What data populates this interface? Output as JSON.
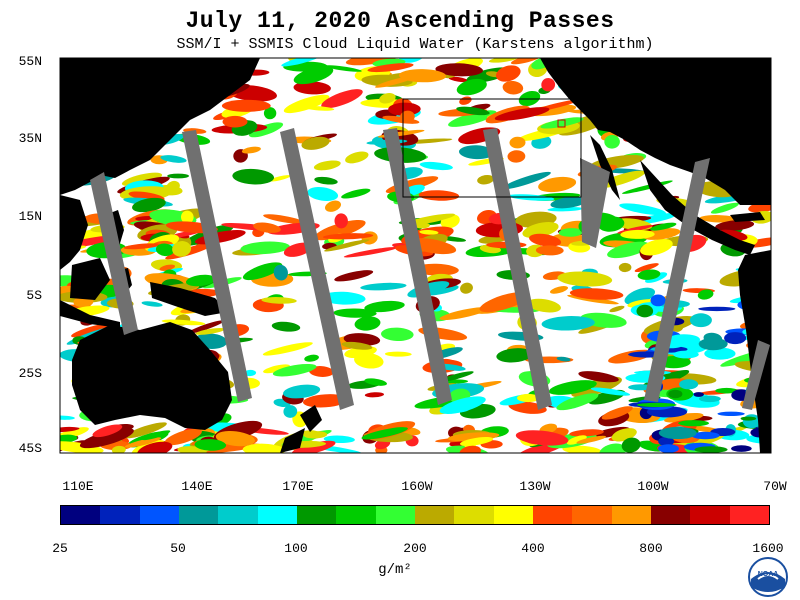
{
  "title": "July 11, 2020  Ascending Passes",
  "subtitle": "SSM/I + SSMIS Cloud Liquid Water (Karstens algorithm)",
  "lat_labels": [
    "55N",
    "35N",
    "15N",
    "5S",
    "25S",
    "45S"
  ],
  "lon_labels": [
    "110E",
    "140E",
    "170E",
    "160W",
    "130W",
    "100W",
    "70W"
  ],
  "colorbar": {
    "units": "g/m²",
    "tick_labels": [
      "25",
      "50",
      "100",
      "200",
      "400",
      "800",
      "1600"
    ],
    "colors": [
      "#00007f",
      "#0022bb",
      "#0055ff",
      "#009999",
      "#00cccc",
      "#00ffff",
      "#009900",
      "#00cc00",
      "#33ff33",
      "#bbaa00",
      "#dddd00",
      "#ffff00",
      "#ff4400",
      "#ff6600",
      "#ff9900",
      "#880000",
      "#cc0000",
      "#ff2222"
    ]
  },
  "map_colors": {
    "land": "#000000",
    "ocean": "#ffffff",
    "swath_gap": "#707070",
    "box": "#000000"
  },
  "logo": {
    "text": "NOAA"
  }
}
